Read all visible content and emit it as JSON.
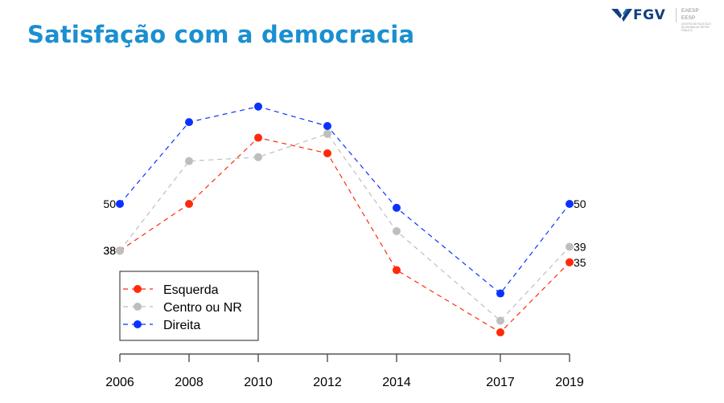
{
  "slide": {
    "title": "Satisfação com a democracia"
  },
  "logo": {
    "brand": "FGV",
    "schools": [
      "EAESP",
      "EESP"
    ],
    "subtitle": "CENTRO DE POLÍTICA E ECONOMIA DO SETOR PÚBLICO",
    "brand_color": "#123e7c"
  },
  "chart_data": {
    "type": "line",
    "title": "Satisfação com a democracia",
    "xlabel": "",
    "ylabel": "",
    "x": [
      2006,
      2008,
      2010,
      2012,
      2014,
      2017,
      2019
    ],
    "x_tick_labels": [
      "2006",
      "2008",
      "2010",
      "2012",
      "2014",
      "2017",
      "2019"
    ],
    "ylim": [
      12,
      78
    ],
    "grid": false,
    "line_style": "dashed",
    "series": [
      {
        "name": "Esquerda",
        "color": "#ff2a0a",
        "values": [
          38,
          50,
          67,
          63,
          33,
          17,
          35
        ]
      },
      {
        "name": "Centro ou NR",
        "color": "#bebebe",
        "values": [
          38,
          61,
          62,
          68,
          43,
          20,
          39
        ]
      },
      {
        "name": "Direita",
        "color": "#0a32ff",
        "values": [
          50,
          71,
          75,
          70,
          49,
          27,
          50
        ]
      }
    ],
    "endpoint_labels": {
      "start": [
        {
          "series": "Esquerda",
          "text": "38"
        },
        {
          "series": "Centro ou NR",
          "text": "38"
        },
        {
          "series": "Direita",
          "text": "50"
        }
      ],
      "end": [
        {
          "series": "Esquerda",
          "text": "35"
        },
        {
          "series": "Centro ou NR",
          "text": "39"
        },
        {
          "series": "Direita",
          "text": "50"
        }
      ]
    },
    "legend": {
      "placement": "bottom-left",
      "entries": [
        "Esquerda",
        "Centro ou NR",
        "Direita"
      ]
    }
  }
}
